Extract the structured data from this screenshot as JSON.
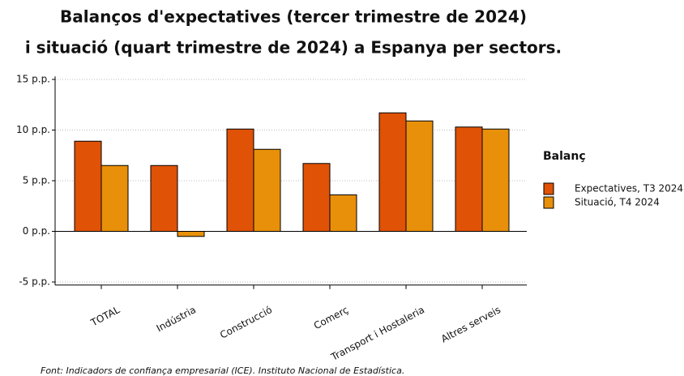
{
  "chart_data": {
    "type": "bar",
    "title": [
      "Balanços d'expectatives (tercer trimestre de 2024)",
      "i situació (quart trimestre de 2024) a Espanya per sectors."
    ],
    "categories": [
      "TOTAL",
      "Indústria",
      "Construcció",
      "Comerç",
      "Transport i Hostaleria",
      "Altres serveis"
    ],
    "series": [
      {
        "name": "Expectatives, T3 2024",
        "color": "#e05206",
        "values": [
          8.9,
          6.5,
          10.1,
          6.7,
          11.7,
          10.3
        ]
      },
      {
        "name": "Situació, T4 2024",
        "color": "#e8900a",
        "values": [
          6.5,
          -0.5,
          8.1,
          3.6,
          10.9,
          10.1
        ]
      }
    ],
    "ylim": [
      -5.3,
      15.3
    ],
    "yticks": [
      {
        "value": -5,
        "label": "-5 p.p."
      },
      {
        "value": 0,
        "label": "0 p.p."
      },
      {
        "value": 5,
        "label": "5 p.p."
      },
      {
        "value": 10,
        "label": "10 p.p."
      },
      {
        "value": 15,
        "label": "15 p.p."
      }
    ],
    "grid": true,
    "legend_title": "Balanç",
    "legend_position": "right",
    "source": "Font: Indicadors de confiança empresarial (ICE). Instituto Nacional de Estadística."
  }
}
